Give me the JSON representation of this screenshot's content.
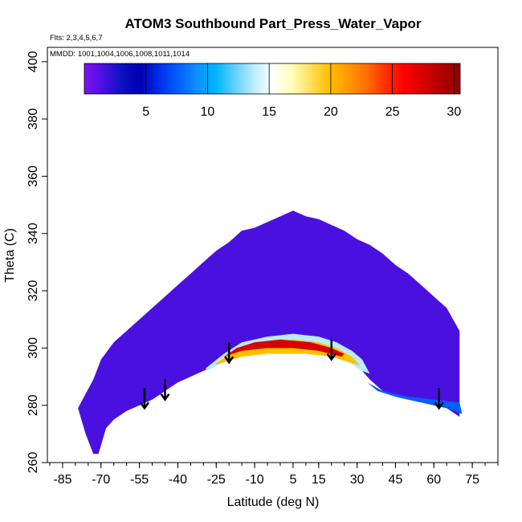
{
  "chart_data": {
    "type": "heatmap",
    "title": "ATOM3 Southbound Part_Press_Water_Vapor",
    "subtitle_flights": "Flts: 2,3,4,5,6,7",
    "subtitle_dates": "MMDD: 1001,1004,1006,1008,1011,1014",
    "xlabel": "Latitude (deg N)",
    "ylabel": "Theta (C)",
    "xlim": [
      -90,
      85
    ],
    "ylim": [
      260,
      405
    ],
    "x_ticks": [
      -85,
      -70,
      -55,
      -40,
      -25,
      -10,
      5,
      15,
      30,
      45,
      60,
      75
    ],
    "x_tick_labels": [
      "-85",
      "-70",
      "-55",
      "-40",
      "-25",
      "-10",
      "5",
      "15",
      "30",
      "45",
      "60",
      "75"
    ],
    "x_minor_step": 5,
    "y_ticks": [
      260,
      280,
      300,
      320,
      340,
      360,
      380,
      400
    ],
    "y_tick_labels": [
      "260",
      "280",
      "300",
      "320",
      "340",
      "360",
      "380",
      "400"
    ],
    "colorbar": {
      "min": 0,
      "max": 30.5,
      "ticks": [
        5,
        10,
        15,
        20,
        25,
        30
      ],
      "tick_labels": [
        "5",
        "10",
        "15",
        "20",
        "25",
        "30"
      ],
      "colors": [
        "#7a12f0",
        "#4a10e0",
        "#0a10c0",
        "#0000b0",
        "#0030e8",
        "#0060ff",
        "#1090ff",
        "#00b4ff",
        "#60d0ff",
        "#b8ecff",
        "#ffffff",
        "#ffffc0",
        "#ffe060",
        "#ffc000",
        "#ff9a00",
        "#ff7000",
        "#ff3000",
        "#ff0000",
        "#d80000",
        "#b00000",
        "#900000"
      ]
    },
    "domain_top": [
      [
        -79,
        279
      ],
      [
        -76,
        284
      ],
      [
        -73,
        289
      ],
      [
        -70,
        296
      ],
      [
        -65,
        302
      ],
      [
        -60,
        306
      ],
      [
        -55,
        310
      ],
      [
        -50,
        314
      ],
      [
        -45,
        318
      ],
      [
        -40,
        322
      ],
      [
        -35,
        326
      ],
      [
        -30,
        330
      ],
      [
        -25,
        334
      ],
      [
        -20,
        337
      ],
      [
        -15,
        341
      ],
      [
        -10,
        342
      ],
      [
        -5,
        344
      ],
      [
        0,
        346
      ],
      [
        5,
        348
      ],
      [
        10,
        346
      ],
      [
        15,
        345
      ],
      [
        20,
        343
      ],
      [
        25,
        341
      ],
      [
        30,
        338
      ],
      [
        35,
        336
      ],
      [
        40,
        333
      ],
      [
        45,
        329
      ],
      [
        50,
        326
      ],
      [
        55,
        322
      ],
      [
        60,
        318
      ],
      [
        65,
        314
      ],
      [
        70,
        306
      ]
    ],
    "domain_bottom": [
      [
        -79,
        279
      ],
      [
        -76,
        270
      ],
      [
        -73,
        263
      ],
      [
        -71,
        263
      ],
      [
        -68,
        272
      ],
      [
        -65,
        275
      ],
      [
        -60,
        278
      ],
      [
        -55,
        280
      ],
      [
        -50,
        282
      ],
      [
        -45,
        285
      ],
      [
        -40,
        288
      ],
      [
        -35,
        290
      ],
      [
        -30,
        292
      ],
      [
        -25,
        294
      ],
      [
        -20,
        297
      ],
      [
        -15,
        299
      ],
      [
        -10,
        300
      ],
      [
        -5,
        300
      ],
      [
        0,
        300
      ],
      [
        5,
        300
      ],
      [
        10,
        300
      ],
      [
        15,
        300
      ],
      [
        20,
        299
      ],
      [
        25,
        297
      ],
      [
        30,
        294
      ],
      [
        35,
        289
      ],
      [
        40,
        285
      ],
      [
        45,
        283
      ],
      [
        50,
        282
      ],
      [
        55,
        281
      ],
      [
        60,
        280
      ],
      [
        65,
        279
      ],
      [
        70,
        276
      ]
    ],
    "colored_bands": [
      {
        "name": "main-moist-band-outer",
        "value": 14,
        "points": [
          [
            -29,
            293
          ],
          [
            -22,
            298
          ],
          [
            -15,
            302
          ],
          [
            -5,
            304
          ],
          [
            5,
            305
          ],
          [
            15,
            304
          ],
          [
            22,
            302
          ],
          [
            28,
            299
          ],
          [
            32,
            296
          ],
          [
            35,
            291
          ],
          [
            32,
            292
          ],
          [
            25,
            296
          ],
          [
            15,
            298
          ],
          [
            5,
            299
          ],
          [
            -5,
            299
          ],
          [
            -15,
            298
          ],
          [
            -22,
            295
          ],
          [
            -29,
            292
          ]
        ]
      },
      {
        "name": "main-moist-band-warm",
        "value": 20,
        "points": [
          [
            -26,
            294
          ],
          [
            -20,
            298
          ],
          [
            -12,
            301
          ],
          [
            -5,
            302
          ],
          [
            5,
            303
          ],
          [
            15,
            302
          ],
          [
            22,
            300
          ],
          [
            28,
            297
          ],
          [
            31,
            294
          ],
          [
            27,
            295
          ],
          [
            20,
            297
          ],
          [
            10,
            298
          ],
          [
            -5,
            298
          ],
          [
            -15,
            297
          ],
          [
            -22,
            295
          ]
        ]
      },
      {
        "name": "main-moist-band-core",
        "value": 28,
        "points": [
          [
            -22,
            297
          ],
          [
            -17,
            300
          ],
          [
            -10,
            302
          ],
          [
            0,
            303
          ],
          [
            12,
            302
          ],
          [
            20,
            300
          ],
          [
            25,
            298
          ],
          [
            24,
            297
          ],
          [
            15,
            299
          ],
          [
            5,
            300
          ],
          [
            -5,
            300
          ],
          [
            -15,
            299
          ]
        ]
      },
      {
        "name": "northern-low-band",
        "value": 8,
        "points": [
          [
            34,
            288
          ],
          [
            40,
            285
          ],
          [
            50,
            283
          ],
          [
            60,
            282
          ],
          [
            70,
            281
          ],
          [
            71,
            277
          ],
          [
            65,
            279
          ],
          [
            55,
            281
          ],
          [
            45,
            283
          ],
          [
            38,
            285
          ]
        ]
      }
    ],
    "arrows": [
      {
        "x": -53,
        "y_start": 286,
        "y_end": 279
      },
      {
        "x": -45,
        "y_start": 289,
        "y_end": 282
      },
      {
        "x": -20,
        "y_start": 302,
        "y_end": 295
      },
      {
        "x": 20,
        "y_start": 303,
        "y_end": 296
      },
      {
        "x": 62,
        "y_start": 286,
        "y_end": 279
      }
    ]
  }
}
